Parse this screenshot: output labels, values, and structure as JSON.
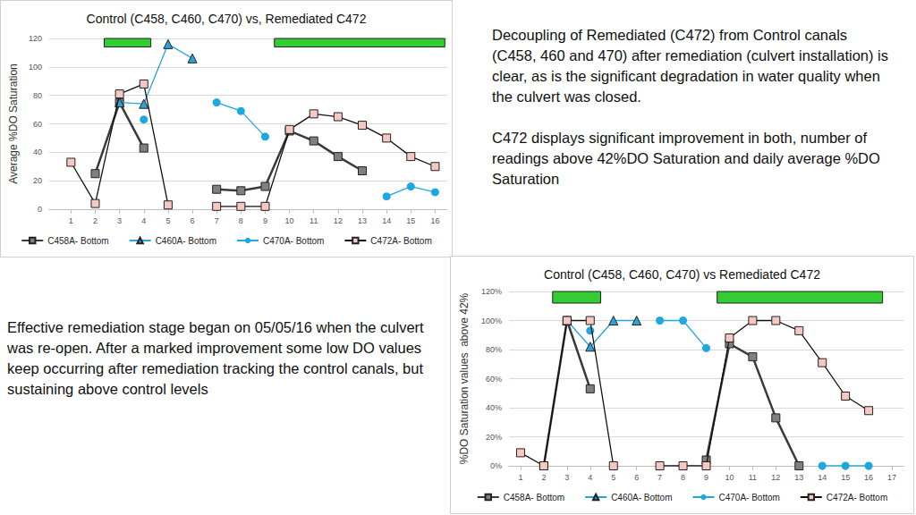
{
  "chart_data": [
    {
      "type": "line",
      "title": "Control (C458, C460, C470) vs, Remediated C472",
      "y_label": "Average %DO Saturation",
      "x": [
        1,
        2,
        3,
        4,
        5,
        6,
        7,
        8,
        9,
        10,
        11,
        12,
        13,
        14,
        15,
        16
      ],
      "xlim": [
        0.1,
        16.5
      ],
      "xticks": [
        1,
        2,
        3,
        4,
        5,
        6,
        7,
        8,
        9,
        10,
        11,
        12,
        13,
        14,
        15,
        16
      ],
      "ylim": [
        0,
        120
      ],
      "yticks": [
        0,
        20,
        40,
        60,
        80,
        100,
        120
      ],
      "grid": true,
      "legend": "bottom",
      "highlight_bars": [
        {
          "x": [
            2.37,
            4.29
          ],
          "y": [
            114,
            121
          ]
        },
        {
          "x": [
            9.38,
            16.4
          ],
          "y": [
            114,
            121
          ]
        }
      ],
      "series": [
        {
          "name": "C458A- Bottom",
          "color": "#808080",
          "marker": "square",
          "line_style": "solid",
          "values": [
            null,
            25,
            75,
            43,
            null,
            null,
            14,
            13,
            16,
            55,
            48,
            37,
            27,
            null,
            null,
            null
          ]
        },
        {
          "name": "C460A- Bottom",
          "color": "#29a3d8",
          "marker": "triangle",
          "line_style": "solid",
          "values": [
            null,
            null,
            75,
            74,
            116,
            106,
            null,
            null,
            null,
            null,
            null,
            null,
            null,
            null,
            null,
            null
          ]
        },
        {
          "name": "C470A- Bottom",
          "color": "#1fa8e0",
          "marker": "circle",
          "line_style": "solid",
          "values": [
            null,
            null,
            null,
            63,
            null,
            null,
            75,
            69,
            51,
            null,
            null,
            null,
            null,
            9,
            16,
            12
          ]
        },
        {
          "name": "C472A- Bottom",
          "color": "#f6c8c4",
          "marker": "square",
          "line_style": "solid",
          "values": [
            33,
            4,
            81,
            88,
            3,
            null,
            2,
            2,
            2,
            56,
            67,
            65,
            59,
            50,
            37,
            30
          ]
        }
      ]
    },
    {
      "type": "line",
      "title": "Control (C458, C460, C470) vs Remediated C472",
      "y_label": "%DO Saturation values  above 42%",
      "x": [
        1,
        2,
        3,
        4,
        5,
        6,
        7,
        8,
        9,
        10,
        11,
        12,
        13,
        14,
        15,
        16,
        17
      ],
      "xlim": [
        0.5,
        17.5
      ],
      "xticks": [
        1,
        2,
        3,
        4,
        5,
        6,
        7,
        8,
        9,
        10,
        11,
        12,
        13,
        14,
        15,
        16,
        17
      ],
      "ylim": [
        0,
        120
      ],
      "yticks": [
        {
          "value": 0,
          "label": "0%"
        },
        {
          "value": 20,
          "label": "20%"
        },
        {
          "value": 40,
          "label": "40%"
        },
        {
          "value": 60,
          "label": "60%"
        },
        {
          "value": 80,
          "label": "80%"
        },
        {
          "value": 100,
          "label": "100%"
        },
        {
          "value": 120,
          "label": "120%"
        }
      ],
      "grid": true,
      "legend": "bottom",
      "highlight_bars": [
        {
          "x": [
            2.38,
            4.45
          ],
          "y": [
            112,
            121
          ]
        },
        {
          "x": [
            9.47,
            16.6
          ],
          "y": [
            112,
            121
          ]
        }
      ],
      "series": [
        {
          "name": "C458A- Bottom",
          "color": "#808080",
          "marker": "square",
          "line_style": "solid",
          "values": [
            null,
            0,
            100,
            53,
            null,
            null,
            null,
            null,
            4,
            84,
            75,
            33,
            0,
            null,
            null,
            null,
            null
          ]
        },
        {
          "name": "C460A- Bottom",
          "color": "#29a3d8",
          "marker": "triangle",
          "line_style": "solid",
          "values": [
            null,
            null,
            100,
            82,
            100,
            100,
            null,
            null,
            null,
            null,
            null,
            null,
            null,
            null,
            null,
            null,
            null
          ]
        },
        {
          "name": "C470A- Bottom",
          "color": "#1fa8e0",
          "marker": "circle",
          "line_style": "solid",
          "values": [
            null,
            null,
            null,
            93,
            null,
            null,
            100,
            100,
            81,
            null,
            null,
            null,
            null,
            0,
            0,
            0,
            null
          ]
        },
        {
          "name": "C472A- Bottom",
          "color": "#f6c8c4",
          "marker": "square",
          "line_style": "solid",
          "values": [
            9,
            0,
            100,
            100,
            0,
            null,
            0,
            0,
            0,
            88,
            100,
            100,
            93,
            71,
            48,
            38,
            null
          ]
        }
      ]
    }
  ],
  "text_blocks": [
    {
      "paragraphs": [
        "Decoupling of Remediated (C472) from Control canals (C458, 460 and 470) after remediation (culvert installation) is clear, as is the significant degradation in water quality when the culvert was closed.",
        "C472 displays significant improvement in both, number of readings above 42%DO Saturation and daily average %DO Saturation"
      ]
    },
    {
      "paragraphs": [
        "Effective remediation stage began on 05/05/16 when the culvert was re-open. After a marked improvement some low DO values keep occurring after remediation tracking the control canals, but sustaining above control levels"
      ]
    }
  ]
}
